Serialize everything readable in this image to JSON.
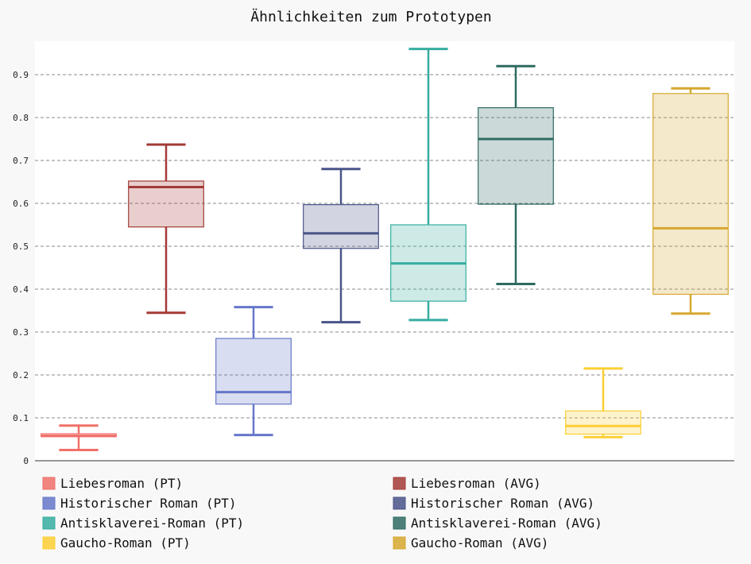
{
  "chart_data": {
    "type": "box",
    "title": "Ähnlichkeiten zum Prototypen",
    "xlabel": "",
    "ylabel": "",
    "ylim": [
      0,
      0.98
    ],
    "yticks": [
      "0",
      "0.1",
      "0.2",
      "0.3",
      "0.4",
      "0.5",
      "0.6",
      "0.7",
      "0.8",
      "0.9"
    ],
    "grid": true,
    "legend_position": "bottom",
    "series": [
      {
        "name": "Liebesroman (PT)",
        "color": "#f07068",
        "min": 0.025,
        "q1": 0.056,
        "median": 0.058,
        "q3": 0.063,
        "max": 0.082
      },
      {
        "name": "Liebesroman (AVG)",
        "color": "#a33b37",
        "min": 0.345,
        "q1": 0.545,
        "median": 0.638,
        "q3": 0.652,
        "max": 0.737
      },
      {
        "name": "Historischer Roman (PT)",
        "color": "#6677c9",
        "min": 0.06,
        "q1": 0.132,
        "median": 0.16,
        "q3": 0.285,
        "max": 0.358
      },
      {
        "name": "Historischer Roman (AVG)",
        "color": "#4a5488",
        "min": 0.323,
        "q1": 0.495,
        "median": 0.53,
        "q3": 0.597,
        "max": 0.68
      },
      {
        "name": "Antisklaverei-Roman (PT)",
        "color": "#36ada0",
        "min": 0.328,
        "q1": 0.372,
        "median": 0.46,
        "q3": 0.55,
        "max": 0.96
      },
      {
        "name": "Antisklaverei-Roman (AVG)",
        "color": "#2e6b62",
        "min": 0.412,
        "q1": 0.598,
        "median": 0.75,
        "q3": 0.823,
        "max": 0.92
      },
      {
        "name": "Gaucho-Roman (PT)",
        "color": "#fbcf35",
        "min": 0.055,
        "q1": 0.062,
        "median": 0.081,
        "q3": 0.116,
        "max": 0.215
      },
      {
        "name": "Gaucho-Roman (AVG)",
        "color": "#d6a830",
        "min": 0.343,
        "q1": 0.388,
        "median": 0.542,
        "q3": 0.856,
        "max": 0.868
      }
    ]
  }
}
